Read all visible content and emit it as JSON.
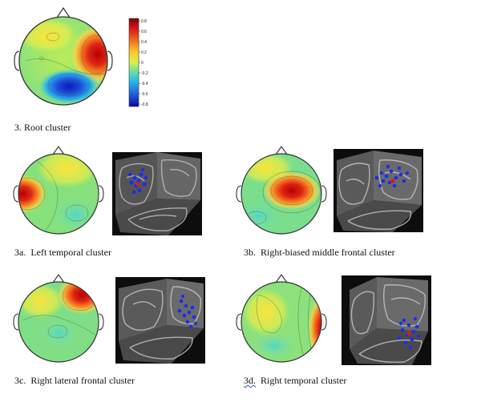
{
  "colorbar": {
    "ticks": [
      "0.8",
      "0.6",
      "0.4",
      "0.2",
      "0",
      "-0.2",
      "-0.4",
      "-0.6",
      "-0.8"
    ],
    "colors": [
      "#7f0000",
      "#d7191c",
      "#f47a20",
      "#fdc82a",
      "#d8f04a",
      "#6fe0a0",
      "#25b6e6",
      "#1f5fd8",
      "#0a0a9a"
    ]
  },
  "captions": {
    "root": "3. Root cluster",
    "a_prefix": "3a.",
    "a_text": "Left temporal cluster",
    "b_prefix": "3b.",
    "b_text": "Right-biased middle frontal cluster",
    "c_prefix": "3c.",
    "c_text": "Right lateral frontal cluster",
    "d_prefix": "3d.",
    "d_text": "Right temporal cluster"
  }
}
